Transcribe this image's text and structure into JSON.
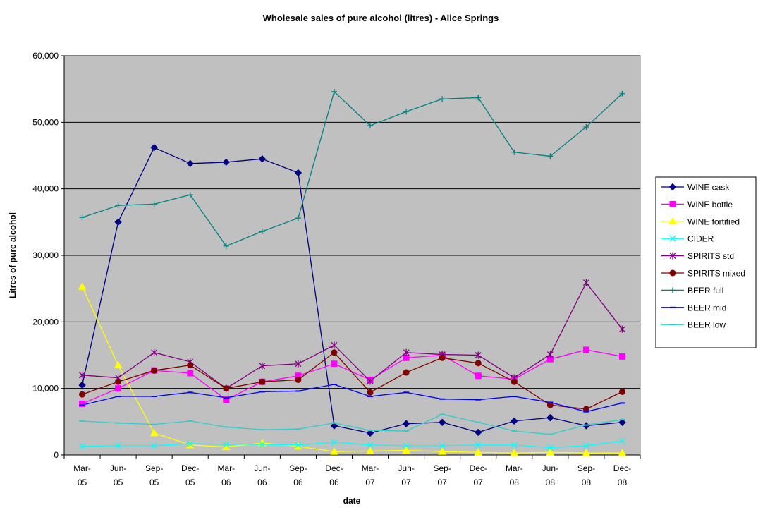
{
  "chart_data": {
    "type": "line",
    "title": "Wholesale sales of pure alcohol (litres) - Alice Springs",
    "xlabel": "date",
    "ylabel": "Litres of pure alcohol",
    "ylim": [
      0,
      60000
    ],
    "yticks": [
      "0",
      "10,000",
      "20,000",
      "30,000",
      "40,000",
      "50,000",
      "60,000"
    ],
    "grid": "horizontal",
    "legend_position": "right",
    "plot_background": "#C0C0C0",
    "categories": [
      [
        "Mar-",
        "05"
      ],
      [
        "Jun-",
        "05"
      ],
      [
        "Sep-",
        "05"
      ],
      [
        "Dec-",
        "05"
      ],
      [
        "Mar-",
        "06"
      ],
      [
        "Jun-",
        "06"
      ],
      [
        "Sep-",
        "06"
      ],
      [
        "Dec-",
        "06"
      ],
      [
        "Mar-",
        "07"
      ],
      [
        "Jun-",
        "07"
      ],
      [
        "Sep-",
        "07"
      ],
      [
        "Dec-",
        "07"
      ],
      [
        "Mar-",
        "08"
      ],
      [
        "Jun-",
        "08"
      ],
      [
        "Sep-",
        "08"
      ],
      [
        "Dec-",
        "08"
      ]
    ],
    "series": [
      {
        "name": "WINE cask",
        "color": "#000080",
        "marker": "diamond",
        "values": [
          10500,
          35000,
          46200,
          43800,
          44000,
          44500,
          42400,
          4400,
          3300,
          4700,
          4900,
          3400,
          5100,
          5600,
          4400,
          4900
        ]
      },
      {
        "name": "WINE bottle",
        "color": "#FF00FF",
        "marker": "square",
        "values": [
          7700,
          10000,
          12700,
          12300,
          8300,
          11000,
          11900,
          13700,
          11300,
          14600,
          15000,
          11900,
          11400,
          14400,
          15800,
          14800
        ]
      },
      {
        "name": "WINE fortified",
        "color": "#FFFF00",
        "marker": "triangle",
        "values": [
          25300,
          13500,
          3300,
          1500,
          1200,
          1800,
          1300,
          500,
          600,
          700,
          500,
          400,
          300,
          400,
          300,
          300
        ]
      },
      {
        "name": "CIDER",
        "color": "#00FFFF",
        "marker": "x",
        "values": [
          1300,
          1400,
          1400,
          1700,
          1600,
          1600,
          1500,
          1900,
          1500,
          1400,
          1400,
          1500,
          1500,
          1100,
          1400,
          2100
        ]
      },
      {
        "name": "SPIRITS std",
        "color": "#800080",
        "marker": "star",
        "values": [
          12000,
          11600,
          15400,
          14000,
          10000,
          13400,
          13700,
          16500,
          11100,
          15400,
          15100,
          15000,
          11600,
          15100,
          25900,
          18900
        ]
      },
      {
        "name": "SPIRITS mixed",
        "color": "#800000",
        "marker": "circle",
        "values": [
          9100,
          11000,
          12700,
          13500,
          10000,
          11000,
          11300,
          15400,
          9400,
          12400,
          14600,
          13800,
          11000,
          7500,
          6900,
          9500
        ]
      },
      {
        "name": "BEER full",
        "color": "#008080",
        "marker": "plus",
        "values": [
          35700,
          37500,
          37700,
          39100,
          31400,
          33600,
          35600,
          54600,
          49500,
          51600,
          53500,
          53700,
          45500,
          44900,
          49300,
          54300
        ]
      },
      {
        "name": "BEER mid",
        "color": "#0000FF",
        "marker": "dash",
        "values": [
          7500,
          8800,
          8800,
          9400,
          8600,
          9500,
          9600,
          10600,
          8800,
          9400,
          8400,
          8300,
          8800,
          7900,
          6500,
          7800
        ]
      },
      {
        "name": "BEER low",
        "color": "#33CCCC",
        "marker": "dash",
        "values": [
          5100,
          4800,
          4600,
          5100,
          4200,
          3800,
          3900,
          4800,
          3700,
          3600,
          6100,
          4900,
          3600,
          3100,
          4500,
          5300
        ]
      }
    ]
  }
}
